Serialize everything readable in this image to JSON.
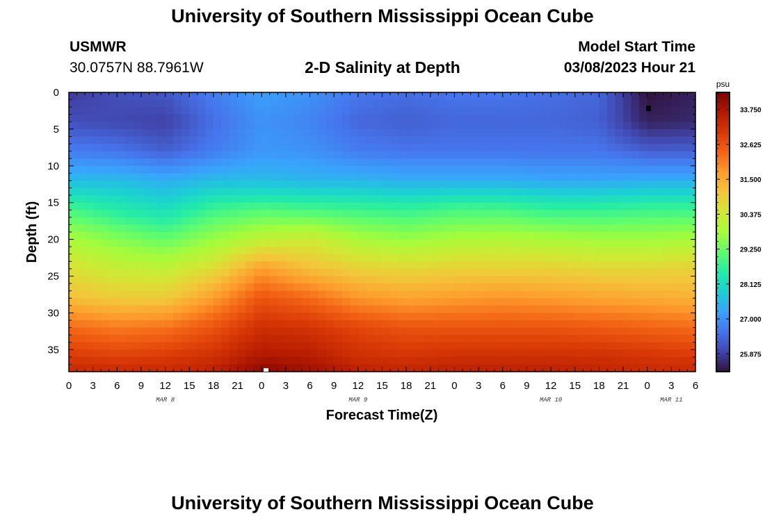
{
  "header": {
    "title": "University of Southern Mississippi Ocean Cube",
    "station": "USMWR",
    "coords": "30.0757N  88.7961W",
    "plot_title": "2-D Salinity at Depth",
    "model_label": "Model Start Time",
    "model_time": "03/08/2023 Hour 21"
  },
  "footer": {
    "title": "University of Southern Mississippi Ocean Cube"
  },
  "colors": {
    "colormap": [
      "#30123b",
      "#4145ab",
      "#4675ed",
      "#39a2fc",
      "#1bcfd4",
      "#24eca6",
      "#61fc6c",
      "#a4fc3b",
      "#d1e834",
      "#f3c63a",
      "#fe9b2d",
      "#f36315",
      "#d93806",
      "#b11901",
      "#7a0403"
    ]
  },
  "chart_data": {
    "type": "heatmap",
    "title": "2-D Salinity at Depth",
    "xlabel": "Forecast Time(Z)",
    "ylabel": "Depth (ft)",
    "x_tick_labels": [
      "0",
      "3",
      "6",
      "9",
      "12",
      "15",
      "18",
      "21",
      "0",
      "3",
      "6",
      "9",
      "12",
      "15",
      "18",
      "21",
      "0",
      "3",
      "6",
      "9",
      "12",
      "15",
      "18",
      "21",
      "0",
      "3",
      "6"
    ],
    "x_date_labels": [
      {
        "label": "MAR 8",
        "at_tick": 4
      },
      {
        "label": "MAR 9",
        "at_tick": 12
      },
      {
        "label": "MAR 10",
        "at_tick": 20
      },
      {
        "label": "MAR 11",
        "at_tick": 25
      }
    ],
    "xlim_hours": [
      0,
      78
    ],
    "ylim": [
      0,
      38
    ],
    "y_ticks": [
      0,
      5,
      10,
      15,
      20,
      25,
      30,
      35
    ],
    "colorbar": {
      "unit": "psu",
      "range": [
        25.3,
        34.3
      ],
      "ticks": [
        "33.750",
        "32.625",
        "31.500",
        "30.375",
        "29.250",
        "28.125",
        "27.000",
        "25.875"
      ]
    },
    "time_hours": [
      0,
      6,
      12,
      18,
      24,
      30,
      36,
      42,
      48,
      54,
      60,
      66,
      72,
      78
    ],
    "depth_ft": [
      0,
      4,
      8,
      12,
      16,
      20,
      24,
      28,
      32,
      36,
      38
    ],
    "salinity": [
      [
        25.8,
        26.1,
        26.2,
        26.7,
        27.2,
        27.0,
        26.6,
        26.5,
        26.6,
        26.6,
        26.5,
        26.4,
        25.3,
        25.5
      ],
      [
        26.1,
        26.0,
        25.9,
        26.5,
        27.0,
        26.8,
        26.4,
        26.3,
        26.4,
        26.4,
        26.4,
        26.3,
        25.5,
        25.6
      ],
      [
        26.7,
        26.6,
        26.3,
        26.7,
        27.1,
        27.0,
        26.7,
        26.6,
        26.6,
        26.6,
        26.6,
        26.6,
        26.3,
        26.3
      ],
      [
        27.6,
        27.6,
        27.4,
        27.6,
        27.6,
        27.5,
        27.5,
        27.4,
        27.4,
        27.4,
        27.3,
        27.3,
        27.4,
        27.4
      ],
      [
        28.9,
        28.5,
        28.2,
        28.8,
        29.0,
        28.9,
        28.8,
        28.7,
        28.9,
        28.9,
        28.7,
        28.7,
        28.8,
        28.8
      ],
      [
        29.9,
        29.5,
        29.2,
        29.7,
        30.2,
        30.4,
        29.9,
        29.7,
        29.9,
        30.0,
        29.9,
        29.8,
        29.8,
        29.9
      ],
      [
        30.6,
        30.3,
        30.2,
        30.7,
        31.7,
        31.2,
        30.9,
        30.8,
        30.9,
        30.9,
        30.9,
        30.8,
        30.8,
        30.9
      ],
      [
        31.2,
        31.0,
        31.0,
        31.7,
        32.6,
        32.3,
        31.8,
        31.6,
        31.7,
        31.8,
        31.7,
        31.6,
        31.5,
        31.4
      ],
      [
        32.3,
        32.1,
        32.2,
        32.6,
        33.2,
        33.1,
        32.8,
        32.6,
        32.6,
        32.6,
        32.6,
        32.5,
        32.4,
        32.3
      ],
      [
        33.0,
        32.9,
        33.0,
        33.2,
        33.7,
        33.6,
        33.2,
        33.1,
        33.2,
        33.2,
        33.2,
        33.2,
        33.1,
        33.0
      ],
      [
        33.3,
        33.3,
        33.3,
        33.5,
        34.1,
        33.9,
        33.5,
        33.4,
        33.5,
        33.5,
        33.5,
        33.4,
        33.3,
        33.3
      ]
    ]
  }
}
